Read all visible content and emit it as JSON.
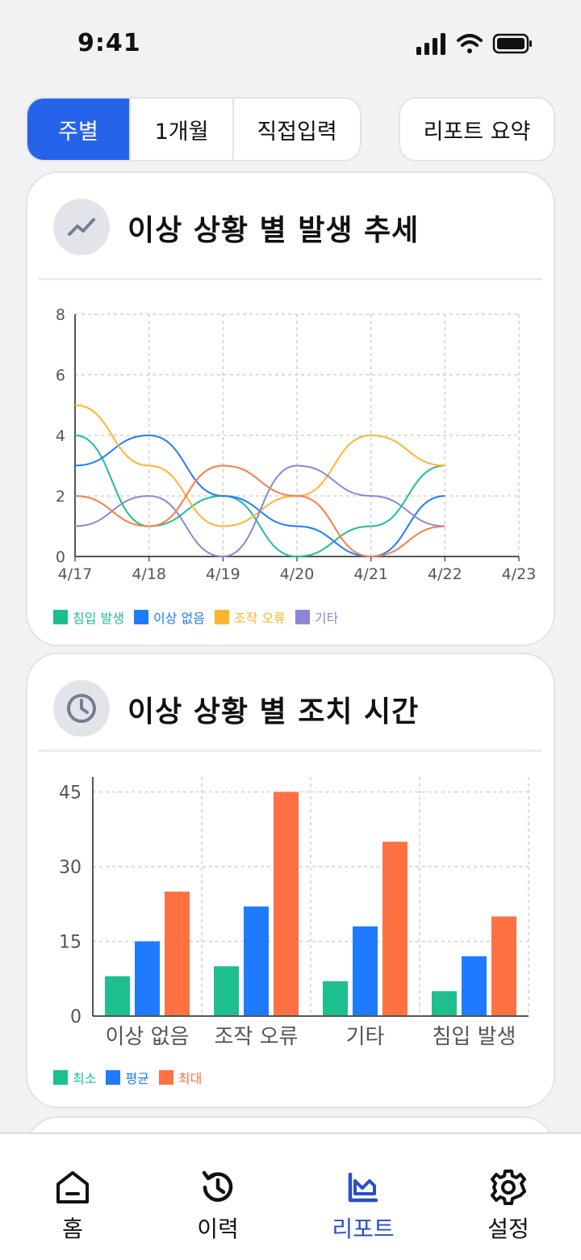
{
  "status": {
    "time": "9:41"
  },
  "period_tabs": [
    "주별",
    "1개월",
    "직접입력"
  ],
  "summary_button": "리포트 요약",
  "trend_card": {
    "title": "이상 상황 별 발생 추세",
    "icon": "trend-icon",
    "chart_data": {
      "type": "line",
      "x": [
        "4/17",
        "4/18",
        "4/19",
        "4/20",
        "4/21",
        "4/22",
        "4/23"
      ],
      "y_ticks": [
        0,
        2,
        4,
        6,
        8
      ],
      "ylim": [
        0,
        8
      ],
      "grid": true,
      "legend": "bottom-left",
      "series": [
        {
          "name": "침입 발생",
          "color": "#1dbf8f",
          "values": [
            4,
            1,
            2,
            0,
            1,
            3,
            null
          ]
        },
        {
          "name": "이상 없음",
          "color": "#1e7bff",
          "values": [
            3,
            4,
            2,
            1,
            0,
            2,
            null
          ]
        },
        {
          "name": "조작 오류",
          "color": "#ffb42e",
          "values": [
            5,
            3,
            1,
            2,
            4,
            3,
            null
          ]
        },
        {
          "name": "기타",
          "color": "#8c85d9",
          "values": [
            1,
            2,
            0,
            3,
            2,
            1,
            null
          ]
        },
        {
          "name": "",
          "color": "#ff7a45",
          "values": [
            2,
            1,
            3,
            2,
            0,
            1,
            null
          ]
        }
      ]
    }
  },
  "time_card": {
    "title": "이상 상황 별 조치 시간",
    "icon": "clock-icon",
    "chart_data": {
      "type": "bar",
      "categories": [
        "이상 없음",
        "조작 오류",
        "기타",
        "침입 발생"
      ],
      "y_ticks": [
        0,
        15,
        30,
        45
      ],
      "ylim": [
        0,
        48
      ],
      "grid": true,
      "legend": "bottom-left",
      "series": [
        {
          "name": "최소",
          "color": "#1dbf8f",
          "values": [
            8,
            10,
            7,
            5
          ]
        },
        {
          "name": "평균",
          "color": "#1e7bff",
          "values": [
            15,
            22,
            18,
            12
          ]
        },
        {
          "name": "최대",
          "color": "#ff7143",
          "values": [
            25,
            45,
            35,
            20
          ]
        }
      ]
    }
  },
  "tabbar": [
    {
      "label": "홈",
      "icon": "home-icon"
    },
    {
      "label": "이력",
      "icon": "history-icon"
    },
    {
      "label": "리포트",
      "icon": "report-icon",
      "active": true
    },
    {
      "label": "설정",
      "icon": "gear-icon"
    }
  ],
  "colors": {
    "accent": "#2563eb",
    "active_tab": "#2a4ec9"
  }
}
